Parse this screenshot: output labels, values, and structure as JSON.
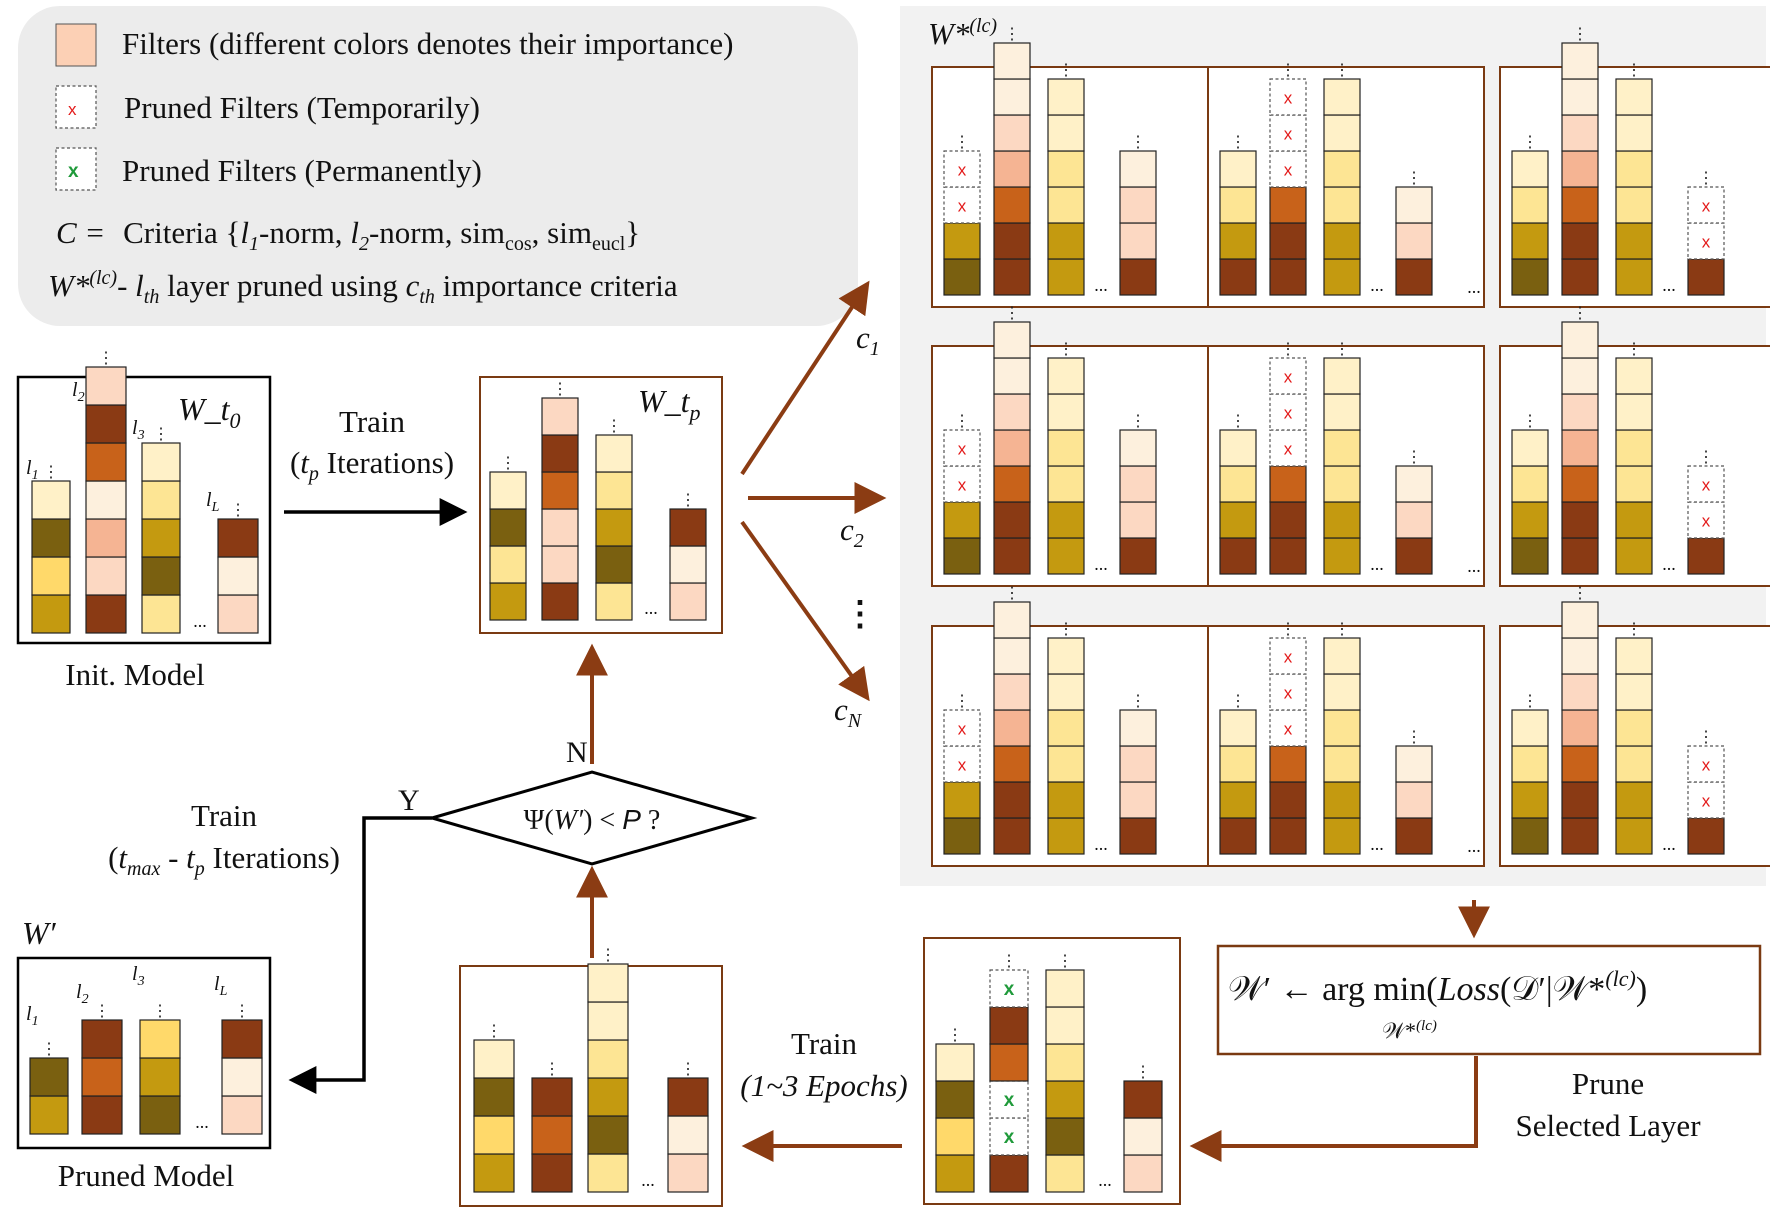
{
  "legend": {
    "filters": "Filters (different colors denotes their importance)",
    "pruned_temp": "Pruned Filters (Temporarily)",
    "pruned_perm": "Pruned Filters (Permanently)",
    "criteria_prefix": "C =",
    "criteria_text": "Criteria {",
    "criteria_l1": "l",
    "criteria_l1_sub": "1",
    "criteria_norm1": "-norm, ",
    "criteria_l2": "l",
    "criteria_l2_sub": "2",
    "criteria_norm2": "-norm, sim",
    "criteria_cos": "cos",
    "criteria_sep": ", sim",
    "criteria_eucl": "eucl",
    "criteria_close": "}",
    "w_def_W": "W*",
    "w_def_sup": "(lc)",
    "w_def_dash": "- ",
    "w_def_l": "l",
    "w_def_th": "th",
    "w_def_mid": " layer pruned using ",
    "w_def_c": "c",
    "w_def_th2": "th",
    "w_def_end": " importance criteria",
    "x_mark": "x"
  },
  "panel_title": {
    "W": "W*",
    "sup": "(lc)"
  },
  "init_model": {
    "title": "W_t",
    "title_sub": "0",
    "caption": "Init. Model",
    "l1": "l",
    "l1_sub": "1",
    "l2": "l",
    "l2_sub": "2",
    "l3": "l",
    "l3_sub": "3",
    "lL": "l",
    "lL_sub": "L"
  },
  "wtp_model": {
    "title": "W_t",
    "title_sub": "p"
  },
  "train_top": {
    "line1": "Train",
    "line2_pre": "(",
    "line2_t": "t",
    "line2_sub": "p",
    "line2_post": " Iterations)"
  },
  "criteria_labels": {
    "c1": "c",
    "c1_sub": "1",
    "c2": "c",
    "c2_sub": "2",
    "cN": "c",
    "cN_sub": "N"
  },
  "decision": {
    "text_pre": "Ψ(",
    "text_W": "W′",
    "text_mid": ") < ",
    "text_P": "P",
    "text_post": " ?",
    "yes": "Y",
    "no": "N"
  },
  "train_left": {
    "line1": "Train",
    "line2_pre": "(",
    "line2_t": "t",
    "line2_sub": "max",
    "line2_mid": " - ",
    "line2_t2": "t",
    "line2_sub2": "p",
    "line2_post": " Iterations)"
  },
  "pruned_model": {
    "title": "W′",
    "caption": "Pruned Model",
    "l1": "l",
    "l1_sub": "1",
    "l2": "l",
    "l2_sub": "2",
    "l3": "l",
    "l3_sub": "3",
    "lL": "l",
    "lL_sub": "L"
  },
  "train_bottom": {
    "line1": "Train",
    "line2": "(1~3 Epochs)"
  },
  "prune_selected": {
    "line1": "Prune",
    "line2": "Selected Layer"
  },
  "formula": {
    "lhs": "𝒲′ ← arg min",
    "body_pre": "(",
    "body_loss": "Loss",
    "body_mid": "(𝒟′|𝒲*",
    "body_sup": "(lc)",
    "body_post": ")",
    "below": "𝒲*",
    "below_sup": "(lc)"
  },
  "ellipsis": "...",
  "vdots": "⋮",
  "colors": {
    "c1": "#fdf0dd",
    "c2": "#fcd8c2",
    "c3": "#f5b493",
    "c4": "#c8621a",
    "c5": "#8a3a14",
    "c6": "#fff1c8",
    "c7": "#fde594",
    "c8": "#c49a10",
    "c9": "#7a6010",
    "c10": "#ffd96a",
    "panel_bg": "#f2f2f2",
    "legend_bg": "#ececec",
    "arrow_brown": "#8b3c13",
    "red_x": "#e31b1b",
    "green_x": "#1f9a3a"
  }
}
